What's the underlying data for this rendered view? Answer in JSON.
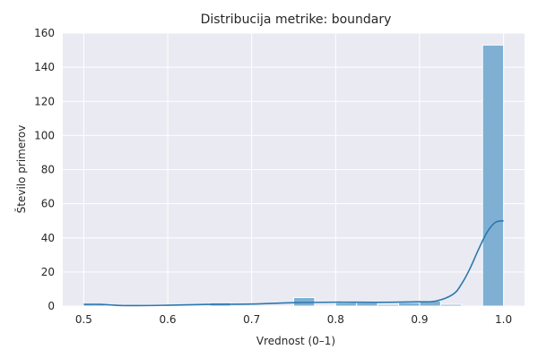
{
  "chart_data": {
    "type": "bar",
    "title": "Distribucija metrike: boundary",
    "xlabel": "Vrednost (0–1)",
    "ylabel": "Število primerov",
    "xlim": [
      0.5,
      1.0
    ],
    "ylim": [
      0,
      160
    ],
    "x_ticks": [
      "0.5",
      "0.6",
      "0.7",
      "0.8",
      "0.9",
      "1.0"
    ],
    "y_ticks": [
      "0",
      "20",
      "40",
      "60",
      "80",
      "100",
      "120",
      "140",
      "160"
    ],
    "grid": true,
    "bin_width": 0.025,
    "bins": [
      {
        "start": 0.5,
        "end": 0.525,
        "count": 1
      },
      {
        "start": 0.525,
        "end": 0.55,
        "count": 0
      },
      {
        "start": 0.55,
        "end": 0.575,
        "count": 0
      },
      {
        "start": 0.575,
        "end": 0.6,
        "count": 0
      },
      {
        "start": 0.6,
        "end": 0.625,
        "count": 0
      },
      {
        "start": 0.625,
        "end": 0.65,
        "count": 0
      },
      {
        "start": 0.65,
        "end": 0.675,
        "count": 2
      },
      {
        "start": 0.675,
        "end": 0.7,
        "count": 0
      },
      {
        "start": 0.7,
        "end": 0.725,
        "count": 0
      },
      {
        "start": 0.725,
        "end": 0.75,
        "count": 0
      },
      {
        "start": 0.75,
        "end": 0.775,
        "count": 5
      },
      {
        "start": 0.775,
        "end": 0.8,
        "count": 0
      },
      {
        "start": 0.8,
        "end": 0.825,
        "count": 2
      },
      {
        "start": 0.825,
        "end": 0.85,
        "count": 2
      },
      {
        "start": 0.85,
        "end": 0.875,
        "count": 1
      },
      {
        "start": 0.875,
        "end": 0.9,
        "count": 2
      },
      {
        "start": 0.9,
        "end": 0.925,
        "count": 3
      },
      {
        "start": 0.925,
        "end": 0.95,
        "count": 1
      },
      {
        "start": 0.95,
        "end": 0.975,
        "count": 0
      },
      {
        "start": 0.975,
        "end": 1.0,
        "count": 153
      }
    ],
    "kde": {
      "x": [
        0.5,
        0.52,
        0.55,
        0.6,
        0.65,
        0.7,
        0.75,
        0.8,
        0.85,
        0.9,
        0.92,
        0.94,
        0.95,
        0.96,
        0.97,
        0.98,
        0.99,
        1.0
      ],
      "y": [
        1,
        1,
        0.3,
        0.5,
        1,
        1.2,
        2,
        2.3,
        2.2,
        2.5,
        3,
        7,
        13,
        22,
        33,
        43,
        49,
        50
      ]
    },
    "colors": {
      "bar_fill": "#7fb0d3",
      "bar_stroke": "#ffffff",
      "kde_line": "#2c78b1",
      "plot_bg": "#eaeaf2",
      "grid": "#ffffff"
    }
  }
}
